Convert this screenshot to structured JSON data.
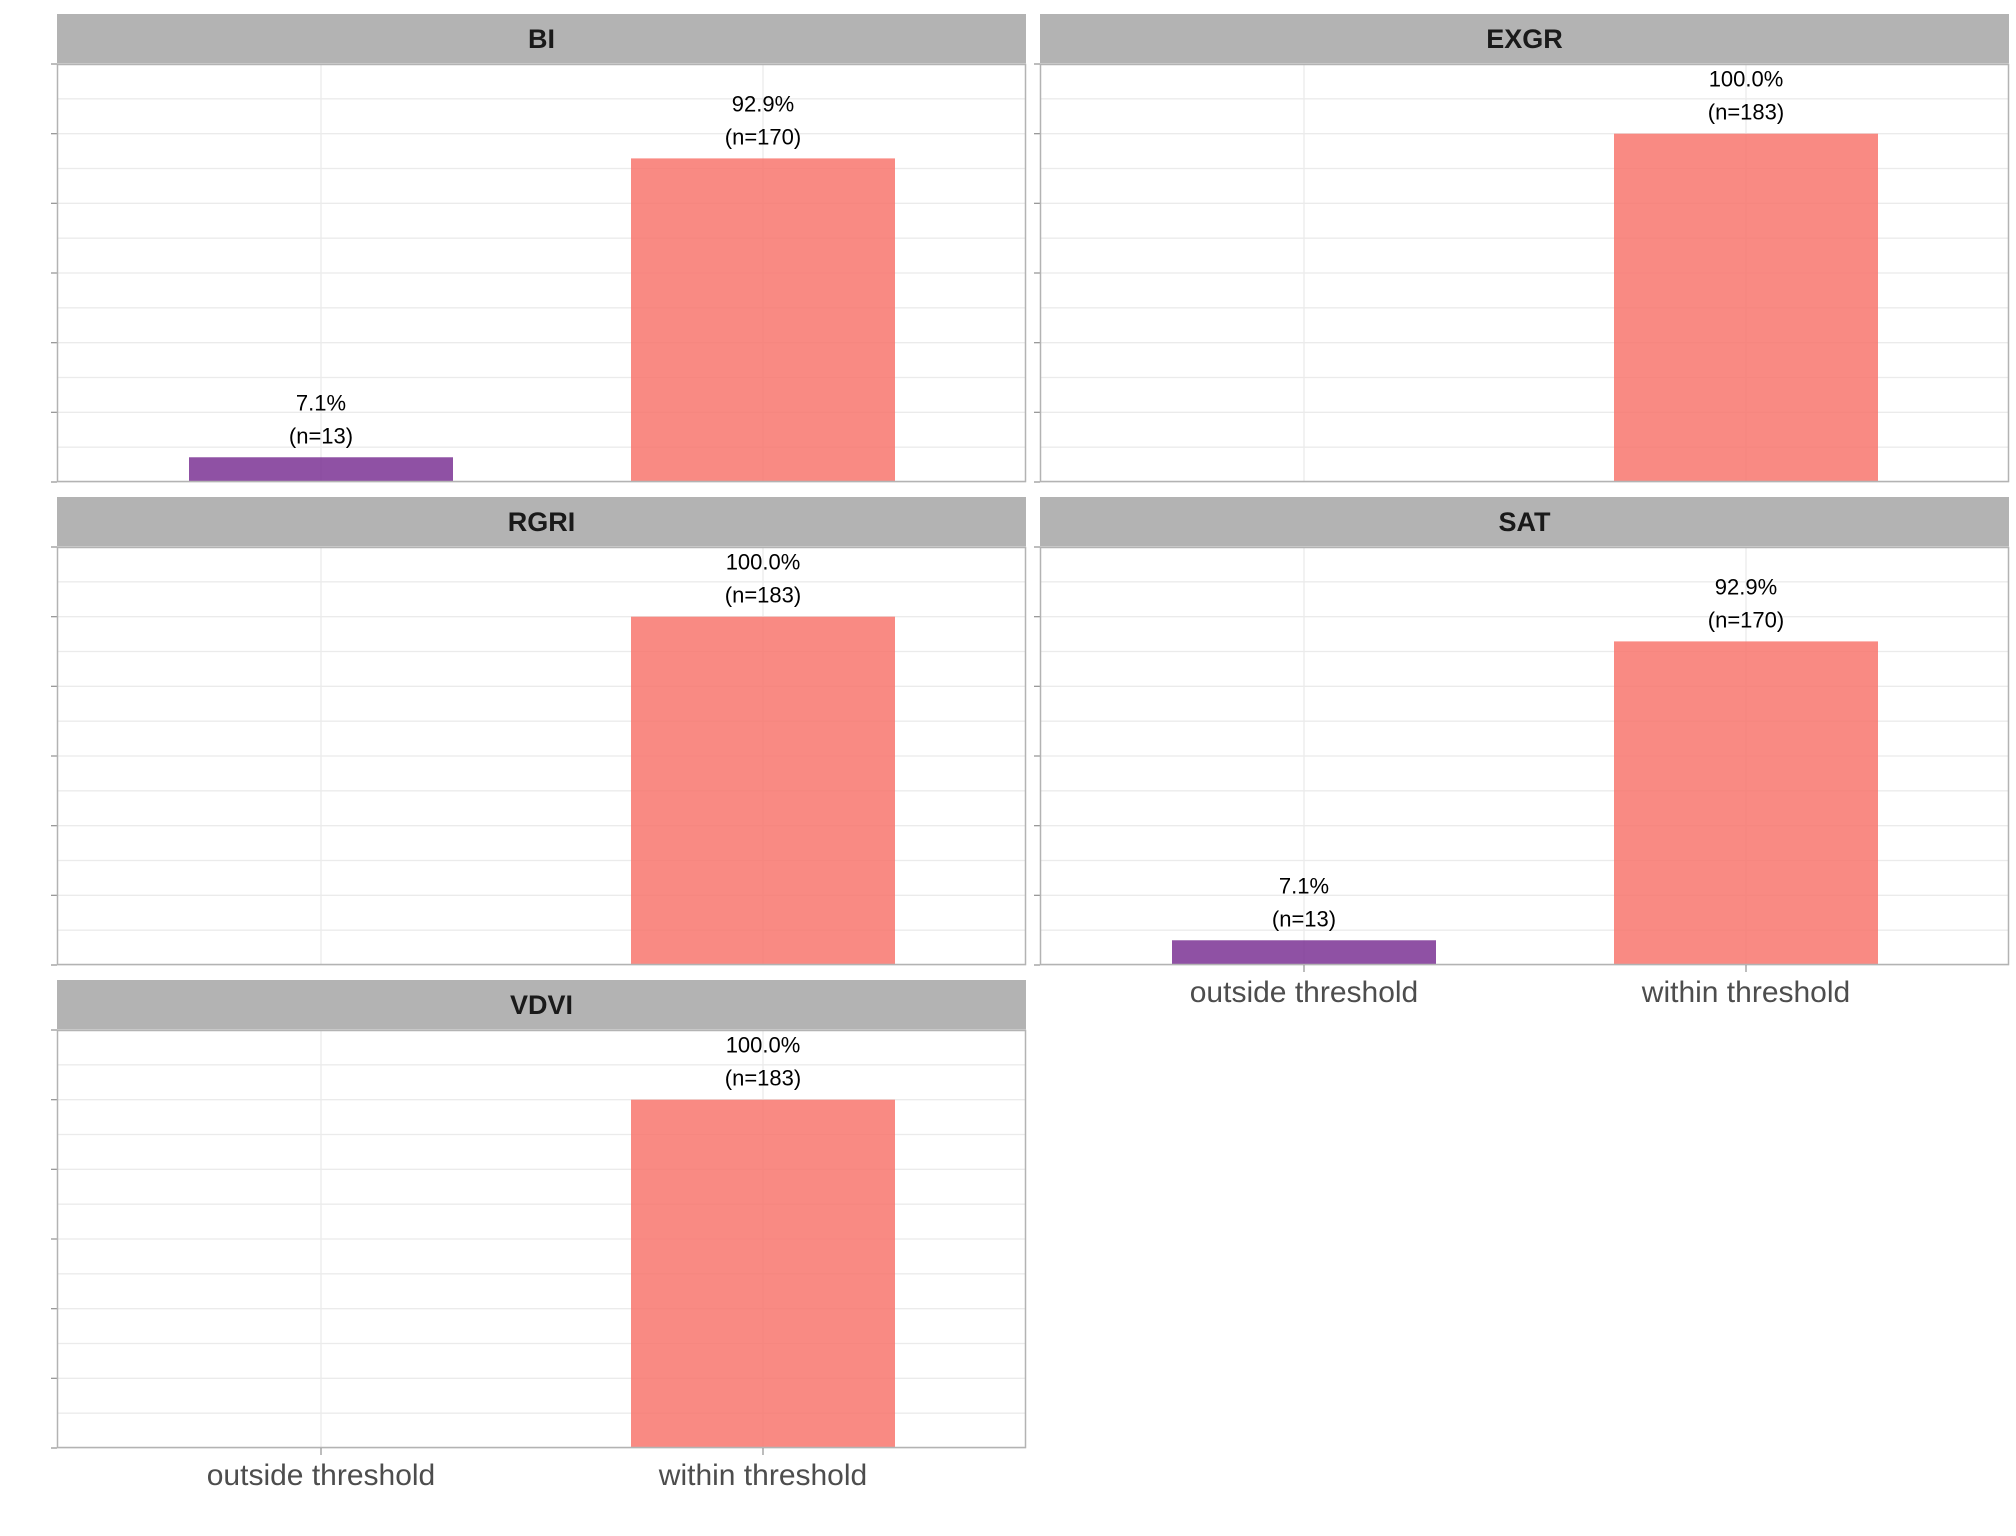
{
  "colors": {
    "outside": "#7b3294",
    "within": "#f8766d",
    "strip": "#b3b3b3",
    "grid": "#ebebeb",
    "border": "#b3b3b3",
    "tick": "#999999"
  },
  "chart_data": {
    "type": "bar",
    "facets": "wrap",
    "categories": [
      "outside threshold",
      "within threshold"
    ],
    "ylim": [
      0,
      1.2
    ],
    "grid": true,
    "panels": [
      {
        "title": "BI",
        "values": [
          0.071,
          0.929
        ],
        "labels": [
          [
            "7.1%",
            "(n=13)"
          ],
          [
            "92.9%",
            "(n=170)"
          ]
        ]
      },
      {
        "title": "EXGR",
        "values": [
          0,
          1.0
        ],
        "labels": [
          [],
          [
            "100.0%",
            "(n=183)"
          ]
        ]
      },
      {
        "title": "RGRI",
        "values": [
          0,
          1.0
        ],
        "labels": [
          [],
          [
            "100.0%",
            "(n=183)"
          ]
        ]
      },
      {
        "title": "SAT",
        "values": [
          0.071,
          0.929
        ],
        "labels": [
          [
            "7.1%",
            "(n=13)"
          ],
          [
            "92.9%",
            "(n=170)"
          ]
        ]
      },
      {
        "title": "VDVI",
        "values": [
          0,
          1.0
        ],
        "labels": [
          [],
          [
            "100.0%",
            "(n=183)"
          ]
        ]
      }
    ]
  }
}
